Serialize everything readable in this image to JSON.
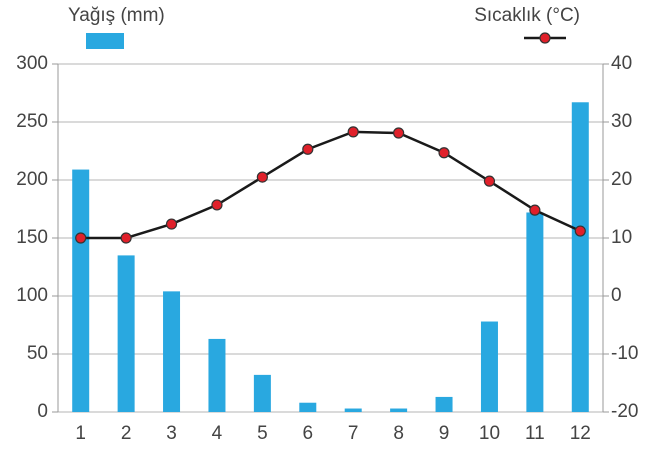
{
  "chart_data": {
    "type": "bar",
    "categories": [
      "1",
      "2",
      "3",
      "4",
      "5",
      "6",
      "7",
      "8",
      "9",
      "10",
      "11",
      "12"
    ],
    "series": [
      {
        "name": "Yağış (mm)",
        "type": "bar",
        "color": "#29a8e0",
        "values": [
          209,
          135,
          104,
          63,
          32,
          8,
          3,
          3,
          13,
          78,
          172,
          267
        ]
      },
      {
        "name": "Sıcaklık (°C)",
        "type": "line",
        "axis": "y2",
        "color": "#1a1a1a",
        "marker_color": "#e0202a",
        "values": [
          10,
          10,
          12.4,
          15.7,
          20.5,
          25.3,
          28.3,
          28.1,
          24.7,
          19.8,
          14.8,
          11.2
        ]
      }
    ],
    "ylim": [
      0,
      300
    ],
    "yticks": [
      0,
      50,
      100,
      150,
      200,
      250,
      300
    ],
    "y2lim": [
      -20,
      40
    ],
    "y2ticks": [
      -20,
      -10,
      0,
      10,
      20,
      30,
      40
    ],
    "grid": true
  }
}
